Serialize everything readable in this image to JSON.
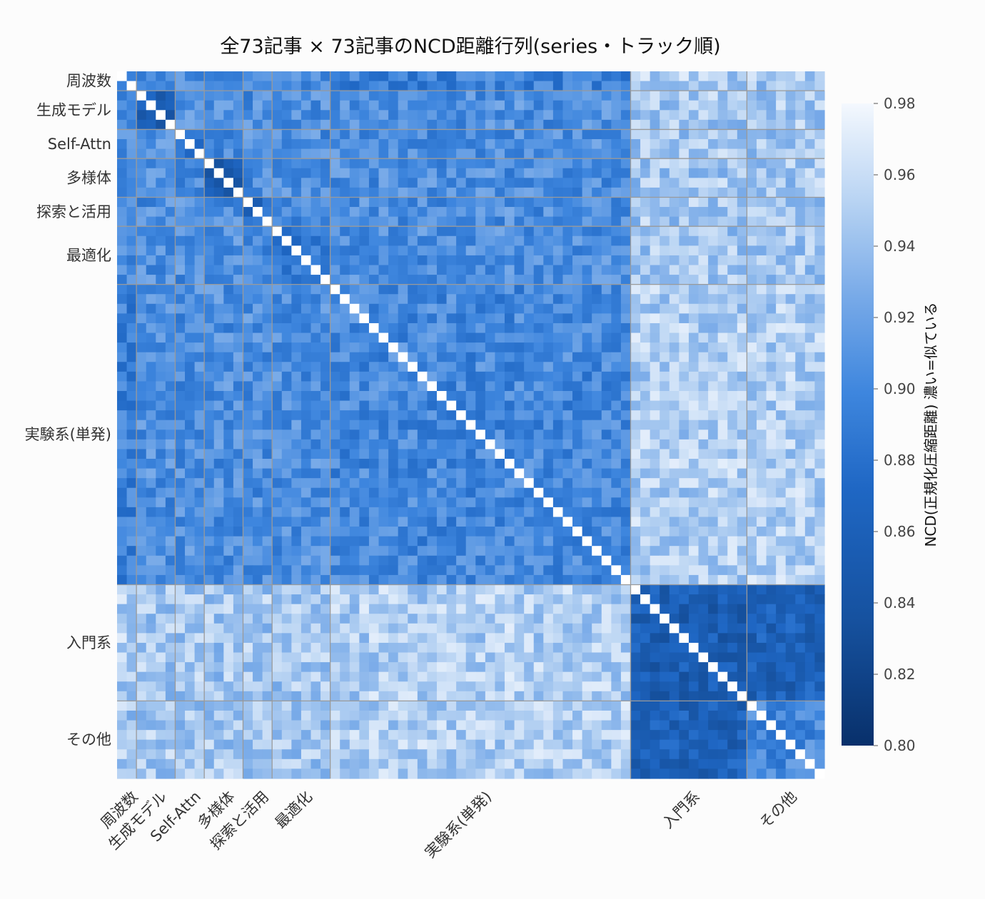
{
  "chart_data": {
    "type": "heatmap",
    "title": "全73記事 × 73記事のNCD距離行列(series・トラック順)",
    "n": 73,
    "groups": [
      {
        "label": "周波数",
        "count": 2
      },
      {
        "label": "生成モデル",
        "count": 4
      },
      {
        "label": "Self-Attn",
        "count": 3
      },
      {
        "label": "多様体",
        "count": 4
      },
      {
        "label": "探索と活用",
        "count": 3
      },
      {
        "label": "最適化",
        "count": 6
      },
      {
        "label": "実験系(単発)",
        "count": 31
      },
      {
        "label": "入門系",
        "count": 12
      },
      {
        "label": "その他",
        "count": 8
      }
    ],
    "group_blocks": [
      {
        "row": "周波数",
        "col": "周波数",
        "mean": 0.88
      },
      {
        "row": "生成モデル",
        "col": "生成モデル",
        "mean": 0.86
      },
      {
        "row": "Self-Attn",
        "col": "Self-Attn",
        "mean": 0.88
      },
      {
        "row": "多様体",
        "col": "多様体",
        "mean": 0.855
      },
      {
        "row": "探索と活用",
        "col": "探索と活用",
        "mean": 0.875
      },
      {
        "row": "最適化",
        "col": "最適化",
        "mean": 0.885
      },
      {
        "row": "実験系(単発)",
        "col": "実験系(単発)",
        "mean": 0.9
      },
      {
        "row": "入門系",
        "col": "入門系",
        "mean": 0.855
      },
      {
        "row": "その他",
        "col": "その他",
        "mean": 0.9
      },
      {
        "row": "入門系",
        "col": "周波数",
        "mean": 0.95
      },
      {
        "row": "入門系",
        "col": "実験系(単発)",
        "mean": 0.95
      },
      {
        "row": "その他",
        "col": "実験系(単発)",
        "mean": 0.95
      },
      {
        "row": "入門系",
        "col": "その他",
        "mean": 0.86
      },
      {
        "row": "実験系(単発)",
        "col": "周波数",
        "mean": 0.895
      }
    ],
    "colorbar": {
      "label": "NCD(正規化圧縮距離)  濃い=似ている",
      "min": 0.8,
      "max": 0.98,
      "ticks": [
        "0.80",
        "0.82",
        "0.84",
        "0.86",
        "0.88",
        "0.90",
        "0.92",
        "0.94",
        "0.96",
        "0.98"
      ],
      "cmap": "Blues_r"
    },
    "colors": {
      "darkest": "#08306b",
      "dark": "#1f67c4",
      "mid": "#4f95e4",
      "light": "#b6d2f2",
      "lightest": "#f4f8fe",
      "diagonal": "#ffffff",
      "separator": "#9a9a9a"
    }
  }
}
